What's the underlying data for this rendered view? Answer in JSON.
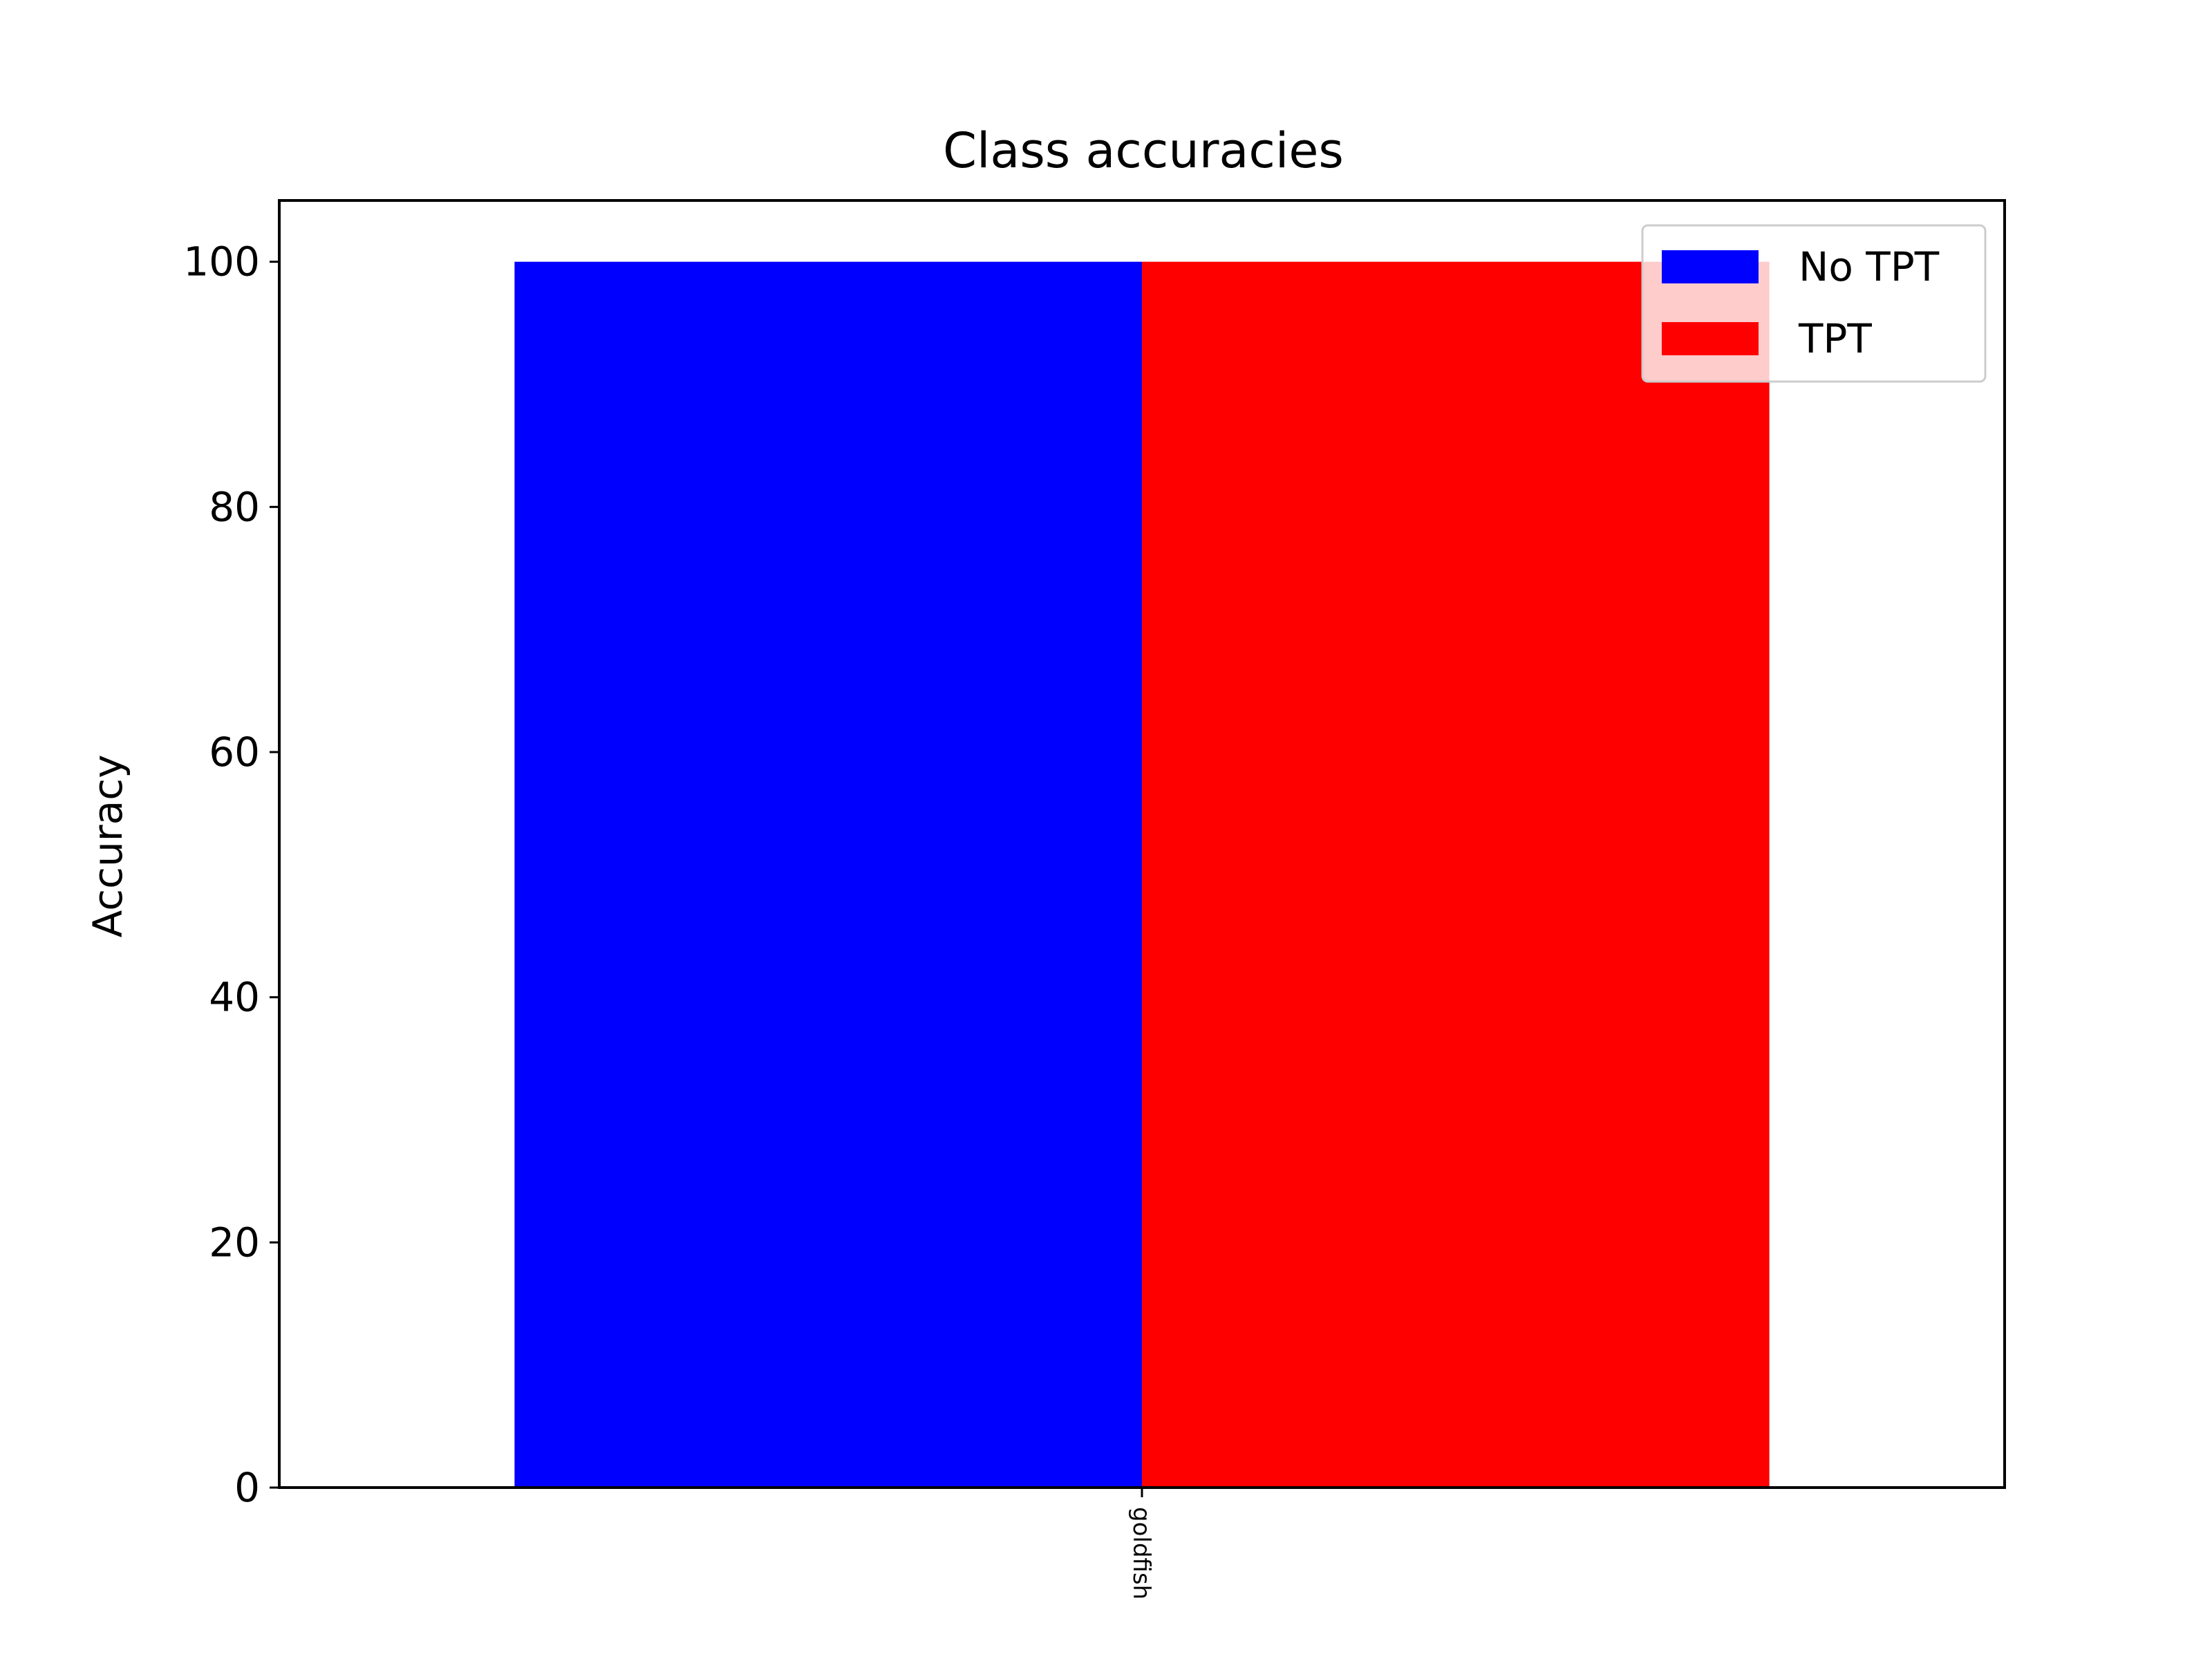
{
  "chart_data": {
    "type": "bar",
    "title": "Class accuracies",
    "xlabel": "",
    "ylabel": "Accuracy",
    "categories": [
      "goldfish"
    ],
    "series": [
      {
        "name": "No TPT",
        "values": [
          100
        ],
        "color": "#0000ff"
      },
      {
        "name": "TPT",
        "values": [
          100
        ],
        "color": "#ff0000"
      }
    ],
    "ylim": [
      0,
      105
    ],
    "yticks": [
      0,
      20,
      40,
      60,
      80,
      100
    ],
    "grid": false,
    "legend_position": "top-right"
  }
}
